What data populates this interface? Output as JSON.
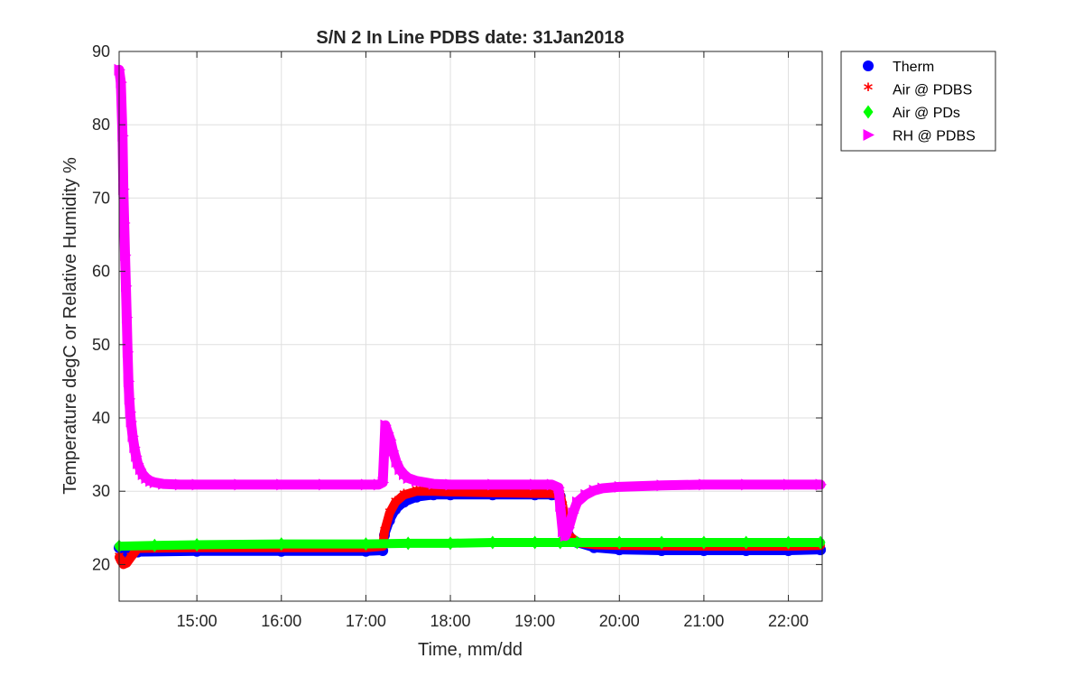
{
  "chart_data": {
    "type": "scatter",
    "title": "S/N 2 In Line PDBS date: 31Jan2018",
    "xlabel": "Time, mm/dd",
    "ylabel": "Temperature degC or Relative Humidity %",
    "x_unit": "hours (time of day)",
    "xlim": [
      14.08,
      22.4
    ],
    "ylim": [
      15,
      90
    ],
    "x_ticks": [
      15,
      16,
      17,
      18,
      19,
      20,
      21,
      22
    ],
    "x_tick_labels": [
      "15:00",
      "16:00",
      "17:00",
      "18:00",
      "19:00",
      "20:00",
      "21:00",
      "22:00"
    ],
    "y_ticks": [
      20,
      30,
      40,
      50,
      60,
      70,
      80,
      90
    ],
    "y_tick_labels": [
      "20",
      "30",
      "40",
      "50",
      "60",
      "70",
      "80",
      "90"
    ],
    "grid": true,
    "legend_position": "outside-top-right",
    "series": [
      {
        "name": "Therm",
        "marker": "circle",
        "color": "#0000ff",
        "points": [
          [
            14.08,
            22.3
          ],
          [
            14.15,
            21.6
          ],
          [
            14.3,
            21.7
          ],
          [
            15,
            21.8
          ],
          [
            16,
            21.8
          ],
          [
            17,
            21.8
          ],
          [
            17.2,
            21.9
          ],
          [
            17.22,
            24
          ],
          [
            17.28,
            26
          ],
          [
            17.35,
            27.5
          ],
          [
            17.45,
            28.5
          ],
          [
            17.6,
            29.2
          ],
          [
            17.8,
            29.5
          ],
          [
            18,
            29.5
          ],
          [
            18.5,
            29.5
          ],
          [
            19,
            29.5
          ],
          [
            19.2,
            29.5
          ],
          [
            19.3,
            29.3
          ],
          [
            19.35,
            26
          ],
          [
            19.4,
            24
          ],
          [
            19.5,
            23
          ],
          [
            19.7,
            22.3
          ],
          [
            20,
            22
          ],
          [
            20.5,
            21.9
          ],
          [
            21,
            21.9
          ],
          [
            21.5,
            21.9
          ],
          [
            22,
            21.9
          ],
          [
            22.38,
            22
          ]
        ]
      },
      {
        "name": "Air @ PDBS",
        "marker": "asterisk",
        "color": "#ff0000",
        "points": [
          [
            14.08,
            21
          ],
          [
            14.1,
            20.5
          ],
          [
            14.13,
            20
          ],
          [
            14.17,
            20.2
          ],
          [
            14.22,
            21
          ],
          [
            14.3,
            22.2
          ],
          [
            15,
            22.3
          ],
          [
            16,
            22.3
          ],
          [
            17,
            22.3
          ],
          [
            17.2,
            22.5
          ],
          [
            17.22,
            24.5
          ],
          [
            17.28,
            27
          ],
          [
            17.35,
            28.5
          ],
          [
            17.45,
            29.5
          ],
          [
            17.6,
            30
          ],
          [
            17.8,
            30
          ],
          [
            18,
            29.9
          ],
          [
            18.5,
            29.8
          ],
          [
            19,
            29.7
          ],
          [
            19.2,
            29.7
          ],
          [
            19.3,
            29.5
          ],
          [
            19.33,
            28
          ],
          [
            19.36,
            25
          ],
          [
            19.4,
            24
          ],
          [
            19.5,
            23
          ],
          [
            19.7,
            22.7
          ],
          [
            20,
            22.6
          ],
          [
            21,
            22.5
          ],
          [
            22,
            22.5
          ],
          [
            22.38,
            22.6
          ]
        ]
      },
      {
        "name": "Air @ PDs",
        "marker": "diamond",
        "color": "#00ff00",
        "points": [
          [
            14.08,
            22.5
          ],
          [
            14.5,
            22.6
          ],
          [
            15,
            22.7
          ],
          [
            16,
            22.8
          ],
          [
            17,
            22.8
          ],
          [
            17.5,
            22.9
          ],
          [
            18,
            22.9
          ],
          [
            18.5,
            23
          ],
          [
            19,
            23
          ],
          [
            19.3,
            23
          ],
          [
            19.5,
            23
          ],
          [
            20,
            23
          ],
          [
            20.5,
            23
          ],
          [
            21,
            23
          ],
          [
            21.5,
            23
          ],
          [
            22,
            23
          ],
          [
            22.38,
            23
          ]
        ]
      },
      {
        "name": "RH @ PDBS",
        "marker": "triangle-right",
        "color": "#ff00ff",
        "points": [
          [
            14.08,
            87.5
          ],
          [
            14.1,
            85.8
          ],
          [
            14.12,
            78.5
          ],
          [
            14.13,
            71.2
          ],
          [
            14.14,
            66.6
          ],
          [
            14.15,
            62.2
          ],
          [
            14.16,
            58
          ],
          [
            14.17,
            53.7
          ],
          [
            14.18,
            49
          ],
          [
            14.19,
            45
          ],
          [
            14.2,
            42.6
          ],
          [
            14.21,
            40.8
          ],
          [
            14.22,
            39.5
          ],
          [
            14.24,
            37.5
          ],
          [
            14.26,
            36
          ],
          [
            14.28,
            34.8
          ],
          [
            14.3,
            33.8
          ],
          [
            14.33,
            33
          ],
          [
            14.36,
            32.3
          ],
          [
            14.4,
            31.8
          ],
          [
            14.45,
            31.4
          ],
          [
            14.5,
            31.2
          ],
          [
            14.6,
            31
          ],
          [
            14.8,
            30.9
          ],
          [
            15,
            30.9
          ],
          [
            15.5,
            30.9
          ],
          [
            16,
            30.9
          ],
          [
            16.5,
            30.9
          ],
          [
            17,
            30.9
          ],
          [
            17.15,
            30.9
          ],
          [
            17.2,
            31.2
          ],
          [
            17.23,
            39
          ],
          [
            17.26,
            38
          ],
          [
            17.29,
            37
          ],
          [
            17.32,
            35.5
          ],
          [
            17.36,
            34
          ],
          [
            17.4,
            33
          ],
          [
            17.45,
            32.3
          ],
          [
            17.5,
            31.8
          ],
          [
            17.6,
            31.4
          ],
          [
            17.8,
            31
          ],
          [
            18,
            30.9
          ],
          [
            18.5,
            30.9
          ],
          [
            19,
            30.9
          ],
          [
            19.2,
            30.9
          ],
          [
            19.28,
            30.5
          ],
          [
            19.3,
            28
          ],
          [
            19.33,
            24.5
          ],
          [
            19.36,
            23.9
          ],
          [
            19.4,
            25
          ],
          [
            19.45,
            27
          ],
          [
            19.5,
            28.5
          ],
          [
            19.6,
            29.5
          ],
          [
            19.7,
            30.1
          ],
          [
            19.8,
            30.4
          ],
          [
            20,
            30.6
          ],
          [
            20.5,
            30.8
          ],
          [
            21,
            30.9
          ],
          [
            21.5,
            30.9
          ],
          [
            22,
            30.9
          ],
          [
            22.38,
            30.9
          ]
        ]
      }
    ]
  },
  "colors": {
    "axis": "#262626",
    "grid": "#dfdfdf",
    "therm": "#0000ff",
    "air_pdbs": "#ff0000",
    "air_pds": "#00ff00",
    "rh_pdbs": "#ff00ff"
  }
}
